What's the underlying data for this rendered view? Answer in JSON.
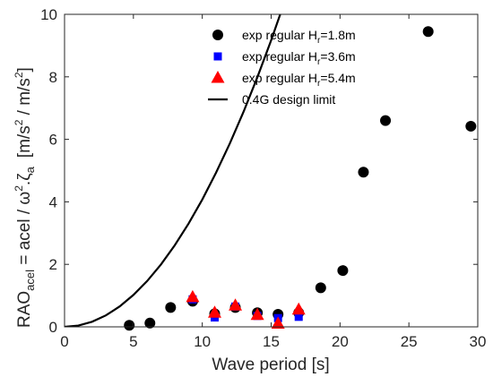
{
  "chart_data": {
    "type": "scatter",
    "xlabel": "Wave period [s]",
    "ylabel_main": "RAO",
    "ylabel_sub": "acel",
    "ylabel_rest": " = acel / ω",
    "ylabel_sq": "2",
    "ylabel_dot": ".ζ",
    "ylabel_a": "a",
    "ylabel_units": "[m/s",
    "ylabel_units_mid": " / m/s",
    "ylabel_units_end": "]",
    "xlim": [
      0,
      30
    ],
    "ylim": [
      0,
      10
    ],
    "xticks": [
      0,
      5,
      10,
      15,
      20,
      25,
      30
    ],
    "yticks": [
      0,
      2,
      4,
      6,
      8,
      10
    ],
    "grid": false,
    "legend_position": "top-center",
    "series": [
      {
        "name_prefix": "exp regular H",
        "name_sub": "r",
        "name_suffix": "=1.8m",
        "marker": "circle",
        "color": "#000000",
        "points": [
          [
            4.7,
            0.05
          ],
          [
            6.2,
            0.12
          ],
          [
            7.7,
            0.62
          ],
          [
            9.3,
            0.82
          ],
          [
            10.9,
            0.42
          ],
          [
            12.4,
            0.62
          ],
          [
            14.0,
            0.45
          ],
          [
            15.5,
            0.4
          ],
          [
            17.0,
            0.45
          ],
          [
            18.6,
            1.25
          ],
          [
            20.2,
            1.8
          ],
          [
            21.7,
            4.95
          ],
          [
            23.3,
            6.6
          ],
          [
            26.4,
            9.45
          ],
          [
            29.5,
            6.42
          ]
        ]
      },
      {
        "name_prefix": "exp regular H",
        "name_sub": "r",
        "name_suffix": "=3.6m",
        "marker": "square",
        "color": "#0000ff",
        "points": [
          [
            9.3,
            0.88
          ],
          [
            10.9,
            0.3
          ],
          [
            12.4,
            0.65
          ],
          [
            14.0,
            0.35
          ],
          [
            15.5,
            0.28
          ],
          [
            17.0,
            0.32
          ]
        ]
      },
      {
        "name_prefix": "exp regular H",
        "name_sub": "r",
        "name_suffix": "=5.4m",
        "marker": "triangle",
        "color": "#ff0000",
        "points": [
          [
            9.3,
            0.95
          ],
          [
            10.9,
            0.45
          ],
          [
            12.4,
            0.68
          ],
          [
            14.0,
            0.38
          ],
          [
            15.5,
            0.1
          ],
          [
            17.0,
            0.55
          ]
        ]
      },
      {
        "name_prefix": "0.4G design limit",
        "name_sub": "",
        "name_suffix": "",
        "marker": "line",
        "color": "#000000",
        "points": [
          [
            0,
            0
          ],
          [
            1,
            0.041
          ],
          [
            2,
            0.163
          ],
          [
            3,
            0.367
          ],
          [
            4,
            0.652
          ],
          [
            5,
            1.019
          ],
          [
            6,
            1.467
          ],
          [
            7,
            1.997
          ],
          [
            8,
            2.608
          ],
          [
            9,
            3.3
          ],
          [
            10,
            4.075
          ],
          [
            11,
            4.93
          ],
          [
            12,
            5.868
          ],
          [
            13,
            6.887
          ],
          [
            14,
            7.987
          ],
          [
            15,
            9.169
          ],
          [
            15.66,
            10.0
          ]
        ]
      }
    ]
  }
}
